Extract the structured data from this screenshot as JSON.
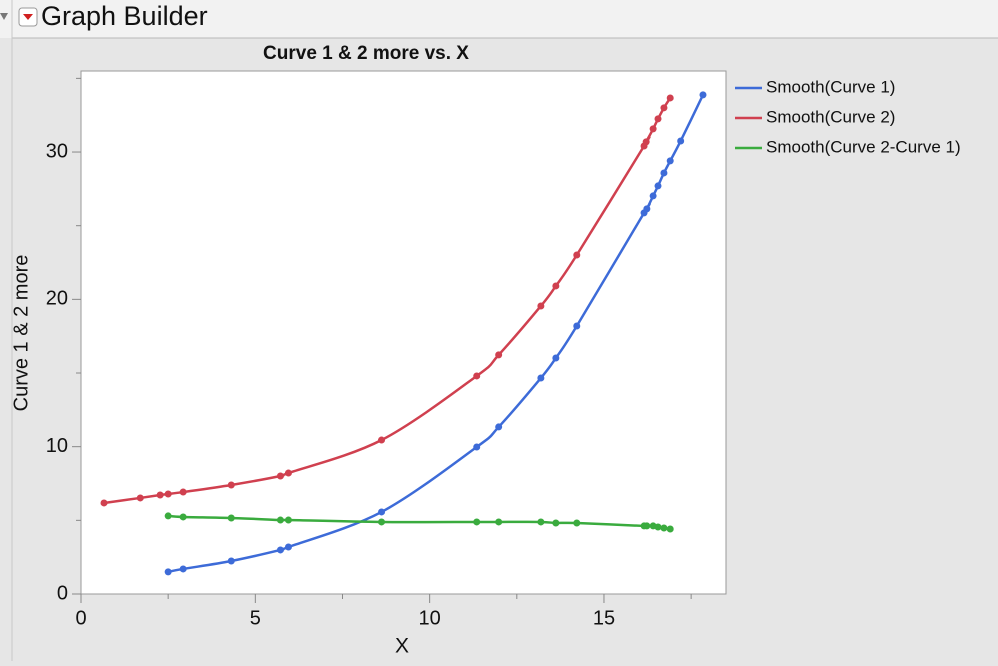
{
  "header": {
    "title": "Graph Builder"
  },
  "chart_data": {
    "type": "line",
    "title": "Curve 1 & 2 more vs. X",
    "xlabel": "X",
    "ylabel": "Curve 1 & 2 more",
    "xlim": [
      0,
      18.5
    ],
    "ylim": [
      0,
      35.5
    ],
    "xticks": [
      0,
      5,
      10,
      15
    ],
    "yticks": [
      0,
      10,
      20,
      30
    ],
    "xminorticks": [
      2.5,
      7.5,
      12.5,
      17.5
    ],
    "yminorticks": [
      5,
      15,
      25,
      35
    ],
    "legend": "right",
    "series": [
      {
        "name": "Smooth(Curve 1)",
        "color": "#3d6bd8",
        "x": [
          2.5,
          2.93,
          4.31,
          5.72,
          5.95,
          8.62,
          11.35,
          11.98,
          13.19,
          13.62,
          14.22,
          16.15,
          16.23,
          16.41,
          16.55,
          16.72,
          16.9,
          17.2,
          17.84
        ],
        "values": [
          1.5,
          1.7,
          2.24,
          2.99,
          3.19,
          5.57,
          9.98,
          11.34,
          14.66,
          16.02,
          18.19,
          25.87,
          26.14,
          27.02,
          27.7,
          28.58,
          29.4,
          30.75,
          33.88
        ]
      },
      {
        "name": "Smooth(Curve 2)",
        "color": "#d0404f",
        "x": [
          0.66,
          1.7,
          2.27,
          2.5,
          2.93,
          4.31,
          5.72,
          5.95,
          8.62,
          11.35,
          11.98,
          13.19,
          13.62,
          14.22,
          16.15,
          16.21,
          16.41,
          16.55,
          16.72,
          16.9
        ],
        "values": [
          6.18,
          6.52,
          6.72,
          6.79,
          6.92,
          7.4,
          8.01,
          8.21,
          10.45,
          14.8,
          16.23,
          19.55,
          20.91,
          23.01,
          30.41,
          30.69,
          31.57,
          32.25,
          33.0,
          33.67
        ]
      },
      {
        "name": "Smooth(Curve 2-Curve 1)",
        "color": "#3aab3e",
        "x": [
          2.5,
          2.93,
          4.31,
          5.72,
          5.95,
          8.62,
          11.35,
          11.98,
          13.19,
          13.62,
          14.22,
          16.15,
          16.23,
          16.41,
          16.55,
          16.72,
          16.9
        ],
        "values": [
          5.3,
          5.23,
          5.16,
          5.02,
          5.02,
          4.89,
          4.89,
          4.89,
          4.89,
          4.82,
          4.82,
          4.62,
          4.62,
          4.62,
          4.55,
          4.48,
          4.41
        ]
      }
    ]
  }
}
